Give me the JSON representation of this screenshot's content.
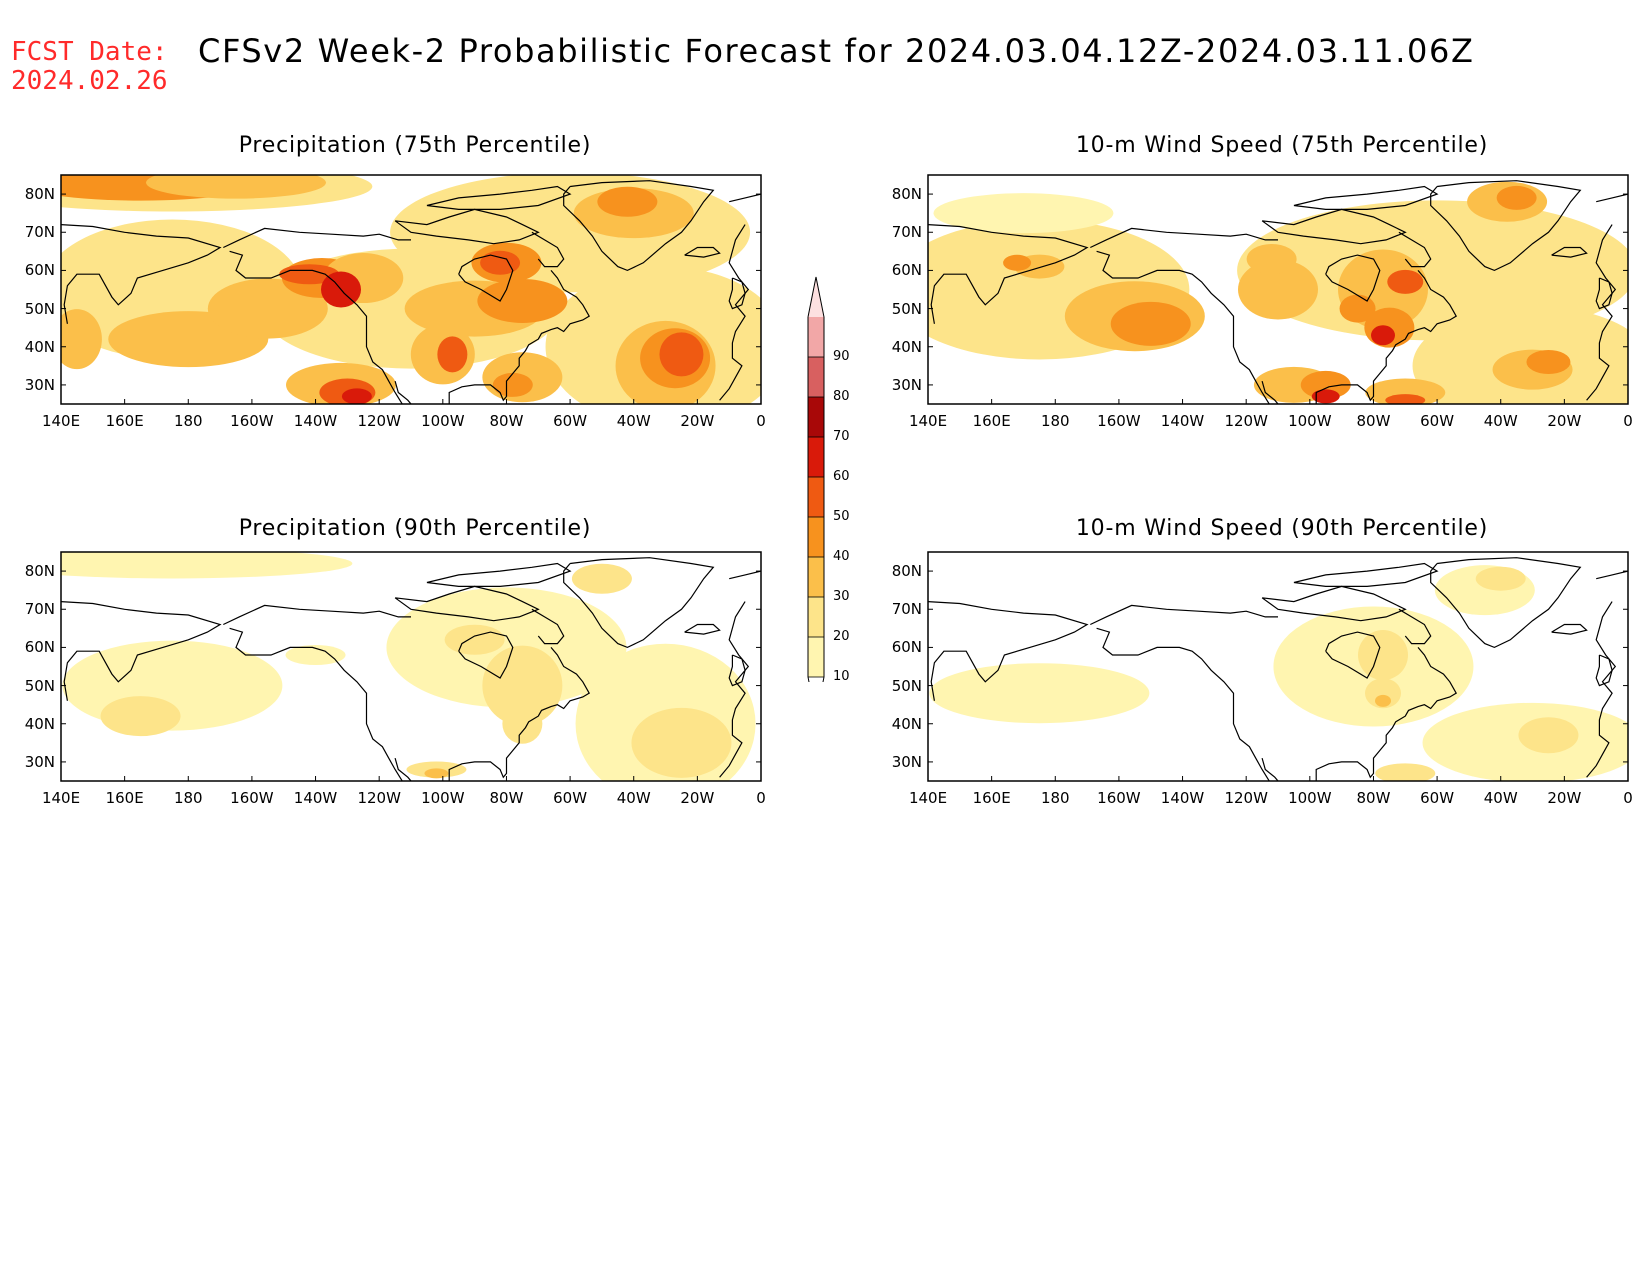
{
  "header": {
    "fcst_label": "FCST Date:",
    "fcst_date": "2024.02.26",
    "title": "CFSv2 Week-2 Probabilistic Forecast for 2024.03.04.12Z-2024.03.11.06Z"
  },
  "axes": {
    "lat_labels": [
      "80N",
      "70N",
      "60N",
      "50N",
      "40N",
      "30N"
    ],
    "lon_labels": [
      "140E",
      "160E",
      "180",
      "160W",
      "140W",
      "120W",
      "100W",
      "80W",
      "60W",
      "40W",
      "20W",
      "0"
    ]
  },
  "panels": [
    {
      "id": "precip-75",
      "title": "Precipitation (75th Percentile)"
    },
    {
      "id": "wind-75",
      "title": "10-m Wind Speed (75th Percentile)"
    },
    {
      "id": "precip-90",
      "title": "Precipitation (90th Percentile)"
    },
    {
      "id": "wind-90",
      "title": "10-m Wind Speed (90th Percentile)"
    }
  ],
  "colorbar": {
    "levels": [
      "10",
      "20",
      "30",
      "40",
      "50",
      "60",
      "70",
      "80",
      "90"
    ],
    "colors": [
      "#fff5b0",
      "#fde48a",
      "#fbbf4a",
      "#f7921e",
      "#ef5a12",
      "#d91a0a",
      "#a80808",
      "#d86060",
      "#f2a7a7",
      "#fde0e0"
    ]
  },
  "colors": {
    "fcst_text": "#ff2a2a",
    "c10": "#fff5b0",
    "c20": "#fde48a",
    "c30": "#fbbf4a",
    "c40": "#f7921e",
    "c50": "#ef5a12",
    "c60": "#d91a0a",
    "c70": "#a80808"
  }
}
